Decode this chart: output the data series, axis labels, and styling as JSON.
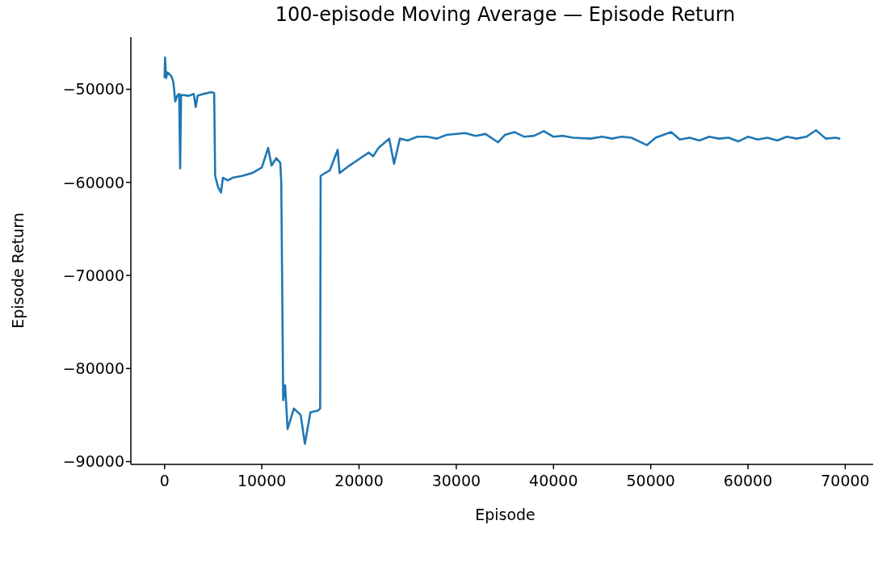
{
  "chart_data": {
    "type": "line",
    "title": "100-episode Moving Average — Episode Return",
    "xlabel": "Episode",
    "ylabel": "Episode Return",
    "xlim": [
      -3470,
      72870
    ],
    "xticks": [
      0,
      10000,
      20000,
      30000,
      40000,
      50000,
      60000,
      70000
    ],
    "ylim": [
      -90300,
      -44400
    ],
    "yticks": [
      -90000,
      -80000,
      -70000,
      -60000,
      -50000
    ],
    "grid": false,
    "legend": false,
    "marker": "none",
    "line_style": "solid",
    "series": [
      {
        "color": "#1f77b4",
        "x": [
          0,
          50,
          150,
          300,
          700,
          900,
          1100,
          1300,
          1500,
          1600,
          1700,
          2500,
          3000,
          3200,
          3400,
          4000,
          4800,
          5100,
          5200,
          5500,
          5800,
          6000,
          6500,
          7000,
          8000,
          9000,
          10000,
          10650,
          11000,
          11500,
          11900,
          12000,
          12200,
          12400,
          12650,
          13300,
          14000,
          14430,
          15000,
          15800,
          16000,
          16050,
          16500,
          17000,
          17800,
          18000,
          19000,
          20000,
          21000,
          21450,
          22000,
          23100,
          23600,
          24200,
          25000,
          26000,
          27000,
          28000,
          29000,
          30900,
          32000,
          33000,
          34300,
          35000,
          36000,
          37000,
          38000,
          39000,
          40000,
          41000,
          42000,
          43800,
          45000,
          46000,
          47000,
          48000,
          49600,
          50500,
          52100,
          53000,
          54000,
          55000,
          56000,
          57000,
          58000,
          59000,
          60000,
          61000,
          62000,
          63000,
          64000,
          65000,
          66000,
          67000,
          68000,
          69000,
          69400
        ],
        "values": [
          -48700,
          -46600,
          -48800,
          -48200,
          -48600,
          -49200,
          -51300,
          -50700,
          -50500,
          -58500,
          -50600,
          -50700,
          -50500,
          -51900,
          -50700,
          -50500,
          -50300,
          -50400,
          -59300,
          -60500,
          -61100,
          -59500,
          -59800,
          -59500,
          -59300,
          -59000,
          -58400,
          -56300,
          -58200,
          -57400,
          -57900,
          -60000,
          -83400,
          -81800,
          -86500,
          -84300,
          -85000,
          -88100,
          -84700,
          -84500,
          -84300,
          -59300,
          -59000,
          -58700,
          -56500,
          -59000,
          -58200,
          -57500,
          -56800,
          -57200,
          -56300,
          -55300,
          -58000,
          -55300,
          -55500,
          -55100,
          -55100,
          -55300,
          -54900,
          -54700,
          -55000,
          -54800,
          -55700,
          -54900,
          -54600,
          -55100,
          -55000,
          -54500,
          -55100,
          -55000,
          -55200,
          -55300,
          -55100,
          -55300,
          -55100,
          -55200,
          -56000,
          -55200,
          -54600,
          -55400,
          -55200,
          -55500,
          -55100,
          -55300,
          -55200,
          -55600,
          -55100,
          -55400,
          -55200,
          -55500,
          -55100,
          -55300,
          -55100,
          -54400,
          -55300,
          -55200,
          -55300
        ]
      }
    ]
  }
}
